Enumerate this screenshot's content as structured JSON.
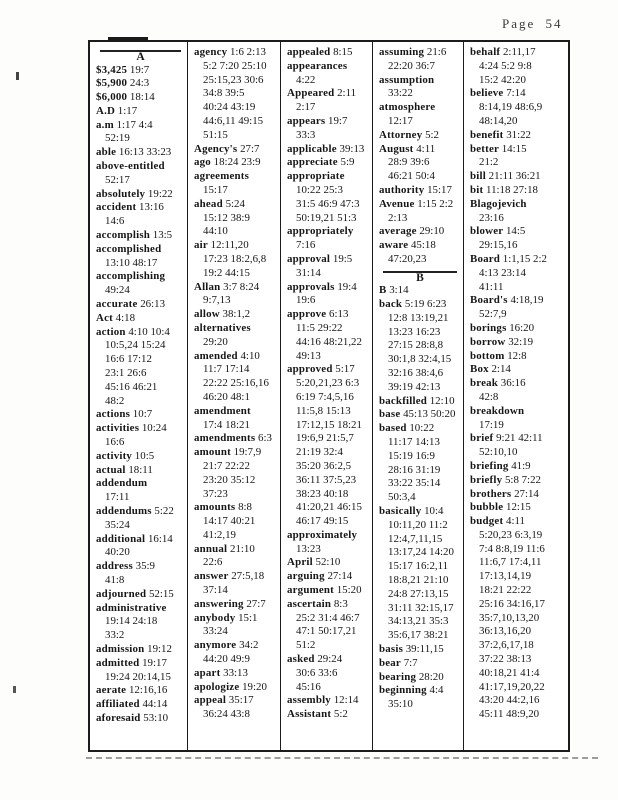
{
  "page": {
    "label": "Page 54"
  },
  "index": {
    "columns": [
      {
        "entries": [
          {
            "section": "A"
          },
          {
            "word": "$3,425",
            "lines": [
              "19:7"
            ]
          },
          {
            "word": "$5,900",
            "lines": [
              "24:3"
            ]
          },
          {
            "word": "$6,000",
            "lines": [
              "18:14"
            ]
          },
          {
            "word": "A.D",
            "lines": [
              "1:17"
            ]
          },
          {
            "word": "a.m",
            "lines": [
              "1:17 4:4",
              "52:19"
            ]
          },
          {
            "word": "able",
            "lines": [
              "16:13 33:23"
            ]
          },
          {
            "word": "above-entitled",
            "lines": [
              "",
              "52:17"
            ]
          },
          {
            "word": "absolutely",
            "lines": [
              "19:22"
            ]
          },
          {
            "word": "accident",
            "lines": [
              "13:16",
              "14:6"
            ]
          },
          {
            "word": "accomplish",
            "lines": [
              "13:5"
            ]
          },
          {
            "word": "accomplished",
            "lines": [
              "",
              "13:10 48:17"
            ]
          },
          {
            "word": "accomplishing",
            "lines": [
              "",
              "49:24"
            ]
          },
          {
            "word": "accurate",
            "lines": [
              "26:13"
            ]
          },
          {
            "word": "Act",
            "lines": [
              "4:18"
            ]
          },
          {
            "word": "action",
            "lines": [
              "4:10 10:4",
              "10:5,24 15:24",
              "16:6 17:12",
              "23:1 26:6",
              "45:16 46:21",
              "48:2"
            ]
          },
          {
            "word": "actions",
            "lines": [
              "10:7"
            ]
          },
          {
            "word": "activities",
            "lines": [
              "10:24",
              "16:6"
            ]
          },
          {
            "word": "activity",
            "lines": [
              "10:5"
            ]
          },
          {
            "word": "actual",
            "lines": [
              "18:11"
            ]
          },
          {
            "word": "addendum",
            "lines": [
              "",
              "17:11"
            ]
          },
          {
            "word": "addendums",
            "lines": [
              "5:22",
              "35:24"
            ]
          },
          {
            "word": "additional",
            "lines": [
              "16:14",
              "40:20"
            ]
          },
          {
            "word": "address",
            "lines": [
              "35:9",
              "41:8"
            ]
          },
          {
            "word": "adjourned",
            "lines": [
              "52:15"
            ]
          },
          {
            "word": "administrative",
            "lines": [
              "",
              "19:14 24:18",
              "33:2"
            ]
          },
          {
            "word": "admission",
            "lines": [
              "19:12"
            ]
          },
          {
            "word": "admitted",
            "lines": [
              "19:17",
              "19:24 20:14,15"
            ]
          },
          {
            "word": "aerate",
            "lines": [
              "12:16,16"
            ]
          },
          {
            "word": "affiliated",
            "lines": [
              "44:14"
            ]
          },
          {
            "word": "aforesaid",
            "lines": [
              "53:10"
            ]
          }
        ]
      },
      {
        "entries": [
          {
            "word": "agency",
            "lines": [
              "1:6 2:13",
              "5:2 7:20 25:10",
              "25:15,23 30:6",
              "34:8 39:5",
              "40:24 43:19",
              "44:6,11 49:15",
              "51:15"
            ]
          },
          {
            "word": "Agency's",
            "lines": [
              "27:7"
            ]
          },
          {
            "word": "ago",
            "lines": [
              "18:24 23:9"
            ]
          },
          {
            "word": "agreements",
            "lines": [
              "",
              "15:17"
            ]
          },
          {
            "word": "ahead",
            "lines": [
              "5:24",
              "15:12 38:9",
              "44:10"
            ]
          },
          {
            "word": "air",
            "lines": [
              "12:11,20",
              "17:23 18:2,6,8",
              "19:2 44:15"
            ]
          },
          {
            "word": "Allan",
            "lines": [
              "3:7 8:24",
              "9:7,13"
            ]
          },
          {
            "word": "allow",
            "lines": [
              "38:1,2"
            ]
          },
          {
            "word": "alternatives",
            "lines": [
              "",
              "29:20"
            ]
          },
          {
            "word": "amended",
            "lines": [
              "4:10",
              "11:7 17:14",
              "22:22 25:16,16",
              "46:20 48:1"
            ]
          },
          {
            "word": "amendment",
            "lines": [
              "",
              "17:4 18:21"
            ]
          },
          {
            "word": "amendments",
            "lines": [
              "6:3"
            ]
          },
          {
            "word": "amount",
            "lines": [
              "19:7,9",
              "21:7 22:22",
              "23:20 35:12",
              "37:23"
            ]
          },
          {
            "word": "amounts",
            "lines": [
              "8:8",
              "14:17 40:21",
              "41:2,19"
            ]
          },
          {
            "word": "annual",
            "lines": [
              "21:10",
              "22:6"
            ]
          },
          {
            "word": "answer",
            "lines": [
              "27:5,18",
              "37:14"
            ]
          },
          {
            "word": "answering",
            "lines": [
              "27:7"
            ]
          },
          {
            "word": "anybody",
            "lines": [
              "15:1",
              "33:24"
            ]
          },
          {
            "word": "anymore",
            "lines": [
              "34:2",
              "44:20 49:9"
            ]
          },
          {
            "word": "apart",
            "lines": [
              "33:13"
            ]
          },
          {
            "word": "apologize",
            "lines": [
              "19:20"
            ]
          },
          {
            "word": "appeal",
            "lines": [
              "35:17",
              "36:24 43:8"
            ]
          }
        ]
      },
      {
        "entries": [
          {
            "word": "appealed",
            "lines": [
              "8:15"
            ]
          },
          {
            "word": "appearances",
            "lines": [
              "",
              "4:22"
            ]
          },
          {
            "word": "Appeared",
            "lines": [
              "2:11",
              "2:17"
            ]
          },
          {
            "word": "appears",
            "lines": [
              "19:7",
              "33:3"
            ]
          },
          {
            "word": "applicable",
            "lines": [
              "39:13"
            ]
          },
          {
            "word": "appreciate",
            "lines": [
              "5:9"
            ]
          },
          {
            "word": "appropriate",
            "lines": [
              "",
              "10:22 25:3",
              "31:5 46:9 47:3",
              "50:19,21 51:3"
            ]
          },
          {
            "word": "appropriately",
            "lines": [
              "",
              "7:16"
            ]
          },
          {
            "word": "approval",
            "lines": [
              "19:5",
              "31:14"
            ]
          },
          {
            "word": "approvals",
            "lines": [
              "19:4",
              "19:6"
            ]
          },
          {
            "word": "approve",
            "lines": [
              "6:13",
              "11:5 29:22",
              "44:16 48:21,22",
              "49:13"
            ]
          },
          {
            "word": "approved",
            "lines": [
              "5:17",
              "5:20,21,23 6:3",
              "6:19 7:4,5,16",
              "11:5,8 15:13",
              "17:12,15 18:21",
              "19:6,9 21:5,7",
              "21:19 32:4",
              "35:20 36:2,5",
              "36:11 37:5,23",
              "38:23 40:18",
              "41:20,21 46:15",
              "46:17 49:15"
            ]
          },
          {
            "word": "approximately",
            "lines": [
              "",
              "13:23"
            ]
          },
          {
            "word": "April",
            "lines": [
              "52:10"
            ]
          },
          {
            "word": "arguing",
            "lines": [
              "27:14"
            ]
          },
          {
            "word": "argument",
            "lines": [
              "15:20"
            ]
          },
          {
            "word": "ascertain",
            "lines": [
              "8:3",
              "25:2 31:4 46:7",
              "47:1 50:17,21",
              "51:2"
            ]
          },
          {
            "word": "asked",
            "lines": [
              "29:24",
              "30:6 33:6",
              "45:16"
            ]
          },
          {
            "word": "assembly",
            "lines": [
              "12:14"
            ]
          },
          {
            "word": "Assistant",
            "lines": [
              "5:2"
            ]
          }
        ]
      },
      {
        "entries": [
          {
            "word": "assuming",
            "lines": [
              "21:6",
              "22:20 36:7"
            ]
          },
          {
            "word": "assumption",
            "lines": [
              "",
              "33:22"
            ]
          },
          {
            "word": "atmosphere",
            "lines": [
              "",
              "12:17"
            ]
          },
          {
            "word": "Attorney",
            "lines": [
              "5:2"
            ]
          },
          {
            "word": "August",
            "lines": [
              "4:11",
              "28:9 39:6",
              "46:21 50:4"
            ]
          },
          {
            "word": "authority",
            "lines": [
              "15:17"
            ]
          },
          {
            "word": "Avenue",
            "lines": [
              "1:15 2:2",
              "2:13"
            ]
          },
          {
            "word": "average",
            "lines": [
              "29:10"
            ]
          },
          {
            "word": "aware",
            "lines": [
              "45:18",
              "47:20,23"
            ]
          },
          {
            "section": "B"
          },
          {
            "word": "B",
            "lines": [
              "3:14"
            ]
          },
          {
            "word": "back",
            "lines": [
              "5:19 6:23",
              "12:8 13:19,21",
              "13:23 16:23",
              "27:15 28:8,8",
              "30:1,8 32:4,15",
              "32:16 38:4,6",
              "39:19 42:13"
            ]
          },
          {
            "word": "backfilled",
            "lines": [
              "12:10"
            ]
          },
          {
            "word": "base",
            "lines": [
              "45:13 50:20"
            ]
          },
          {
            "word": "based",
            "lines": [
              "10:22",
              "11:17 14:13",
              "15:19 16:9",
              "28:16 31:19",
              "33:22 35:14",
              "50:3,4"
            ]
          },
          {
            "word": "basically",
            "lines": [
              "10:4",
              "10:11,20 11:2",
              "12:4,7,11,15",
              "13:17,24 14:20",
              "15:17 16:2,11",
              "18:8,21 21:10",
              "24:8 27:13,15",
              "31:11 32:15,17",
              "34:13,21 35:3",
              "35:6,17 38:21"
            ]
          },
          {
            "word": "basis",
            "lines": [
              "39:11,15"
            ]
          },
          {
            "word": "bear",
            "lines": [
              "7:7"
            ]
          },
          {
            "word": "bearing",
            "lines": [
              "28:20"
            ]
          },
          {
            "word": "beginning",
            "lines": [
              "4:4",
              "35:10"
            ]
          }
        ]
      },
      {
        "entries": [
          {
            "word": "behalf",
            "lines": [
              "2:11,17",
              "4:24 5:2 9:8",
              "15:2 42:20"
            ]
          },
          {
            "word": "believe",
            "lines": [
              "7:14",
              "8:14,19 48:6,9",
              "48:14,20"
            ]
          },
          {
            "word": "benefit",
            "lines": [
              "31:22"
            ]
          },
          {
            "word": "better",
            "lines": [
              "14:15",
              "21:2"
            ]
          },
          {
            "word": "bill",
            "lines": [
              "21:11 36:21"
            ]
          },
          {
            "word": "bit",
            "lines": [
              "11:18 27:18"
            ]
          },
          {
            "word": "Blagojevich",
            "lines": [
              "",
              "23:16"
            ]
          },
          {
            "word": "blower",
            "lines": [
              "14:5",
              "29:15,16"
            ]
          },
          {
            "word": "Board",
            "lines": [
              "1:1,15 2:2",
              "4:13 23:14",
              "41:11"
            ]
          },
          {
            "word": "Board's",
            "lines": [
              "4:18,19",
              "52:7,9"
            ]
          },
          {
            "word": "borings",
            "lines": [
              "16:20"
            ]
          },
          {
            "word": "borrow",
            "lines": [
              "32:19"
            ]
          },
          {
            "word": "bottom",
            "lines": [
              "12:8"
            ]
          },
          {
            "word": "Box",
            "lines": [
              "2:14"
            ]
          },
          {
            "word": "break",
            "lines": [
              "36:16",
              "42:8"
            ]
          },
          {
            "word": "breakdown",
            "lines": [
              "",
              "17:19"
            ]
          },
          {
            "word": "brief",
            "lines": [
              "9:21 42:11",
              "52:10,10"
            ]
          },
          {
            "word": "briefing",
            "lines": [
              "41:9"
            ]
          },
          {
            "word": "briefly",
            "lines": [
              "5:8 7:22"
            ]
          },
          {
            "word": "brothers",
            "lines": [
              "27:14"
            ]
          },
          {
            "word": "bubble",
            "lines": [
              "12:15"
            ]
          },
          {
            "word": "budget",
            "lines": [
              "4:11",
              "5:20,23 6:3,19",
              "7:4 8:8,19 11:6",
              "11:6,7 17:4,11",
              "17:13,14,19",
              "18:21 22:22",
              "25:16 34:16,17",
              "35:7,10,13,20",
              "36:13,16,20",
              "37:2,6,17,18",
              "37:22 38:13",
              "40:18,21 41:4",
              "41:17,19,20,22",
              "43:20 44:2,16",
              "45:11 48:9,20"
            ]
          }
        ]
      }
    ]
  }
}
